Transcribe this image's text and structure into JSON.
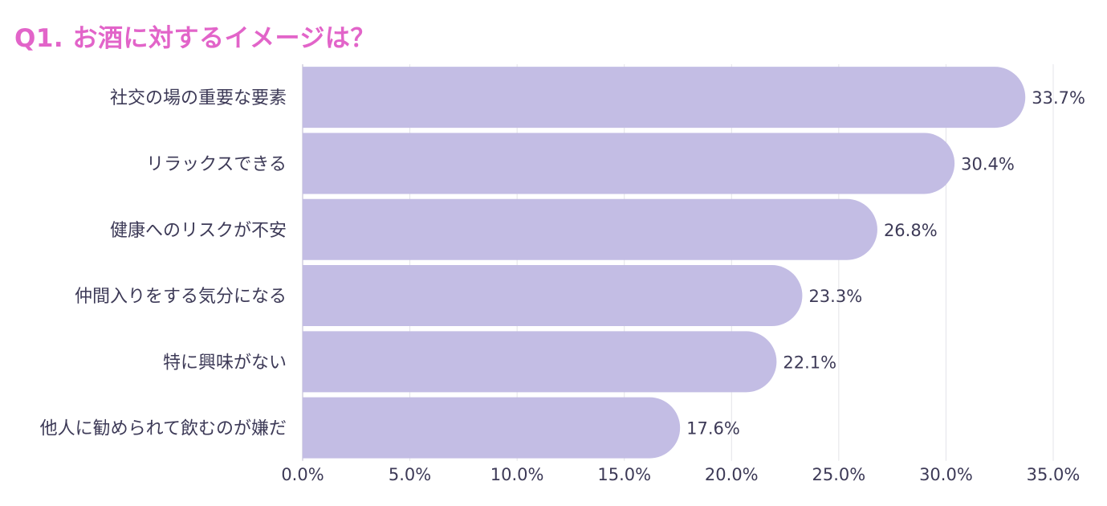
{
  "chart_data": {
    "type": "bar",
    "orientation": "horizontal",
    "title": "Q1. お酒に対するイメージは？",
    "categories": [
      "社交の場の重要な要素",
      "リラックスできる",
      "健康へのリスクが不安",
      "仲間入りをする気分になる",
      "特に興味がない",
      "他人に勧められて飲むのが嫌だ"
    ],
    "values": [
      33.7,
      30.4,
      26.8,
      23.3,
      22.1,
      17.6
    ],
    "value_labels": [
      "33.7%",
      "30.4%",
      "26.8%",
      "23.3%",
      "22.1%",
      "17.6%"
    ],
    "xlim": [
      0,
      35
    ],
    "xticks": [
      0,
      5,
      10,
      15,
      20,
      25,
      30,
      35
    ],
    "xtick_labels": [
      "0.0%",
      "5.0%",
      "10.0%",
      "15.0%",
      "20.0%",
      "25.0%",
      "30.0%",
      "35.0%"
    ],
    "grid": true,
    "legend": "none",
    "colors": {
      "bar": "#c3bde4",
      "title": "#e264c9",
      "text": "#3d3a57",
      "grid": "#e3e3e8"
    }
  }
}
